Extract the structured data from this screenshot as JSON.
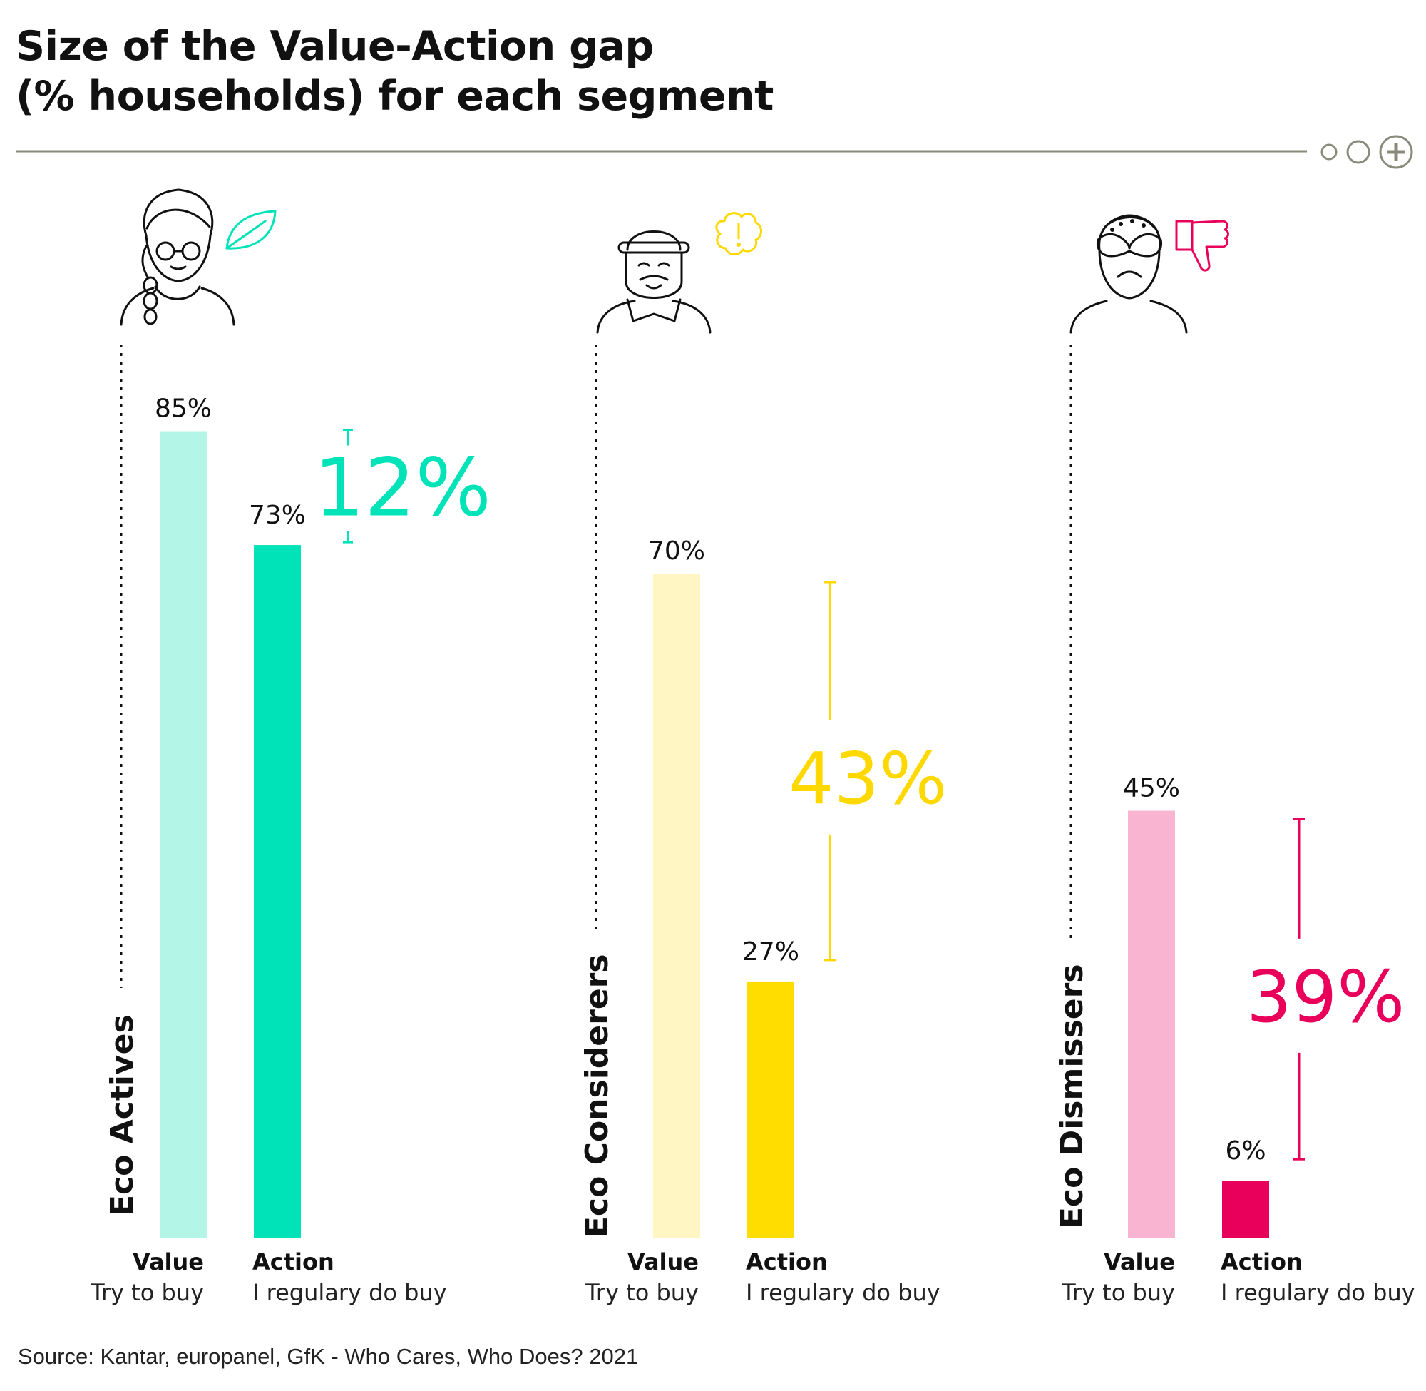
{
  "title": [
    "Size of the Value-Action gap",
    "(% households) for each segment"
  ],
  "source": "Source: Kantar, europanel, GfK - Who Cares, Who Does? 2021",
  "colors": {
    "rule": "#8a8a7a",
    "text": "#111111"
  },
  "chart_data": {
    "type": "bar",
    "ylim": [
      0,
      100
    ],
    "grid": false,
    "value_unit": "%",
    "categories_value_label": "Value",
    "categories_value_sub": "Try to buy",
    "categories_action_label": "Action",
    "categories_action_sub": "I regulary do buy",
    "segments": [
      {
        "name": "Eco Actives",
        "value": 85,
        "action": 73,
        "gap": 12,
        "value_label": "85%",
        "action_label": "73%",
        "gap_label": "12%",
        "color_value": "#b3f5e6",
        "color_action": "#00e3b8",
        "color_gap": "#00e3b8",
        "icon": "woman-with-glasses-icon",
        "badge_icon": "leaf-icon"
      },
      {
        "name": "Eco Considerers",
        "value": 70,
        "action": 27,
        "gap": 43,
        "value_label": "70%",
        "action_label": "27%",
        "gap_label": "43%",
        "color_value": "#fff6c4",
        "color_action": "#ffdd00",
        "color_gap": "#ffd800",
        "icon": "bearded-man-icon",
        "badge_icon": "exclamation-badge-icon"
      },
      {
        "name": "Eco Dismissers",
        "value": 45,
        "action": 6,
        "gap": 39,
        "value_label": "45%",
        "action_label": "6%",
        "gap_label": "39%",
        "color_value": "#f8b4d0",
        "color_action": "#e8005a",
        "color_gap": "#e8005a",
        "icon": "frowning-person-icon",
        "badge_icon": "thumbs-down-icon"
      }
    ]
  }
}
